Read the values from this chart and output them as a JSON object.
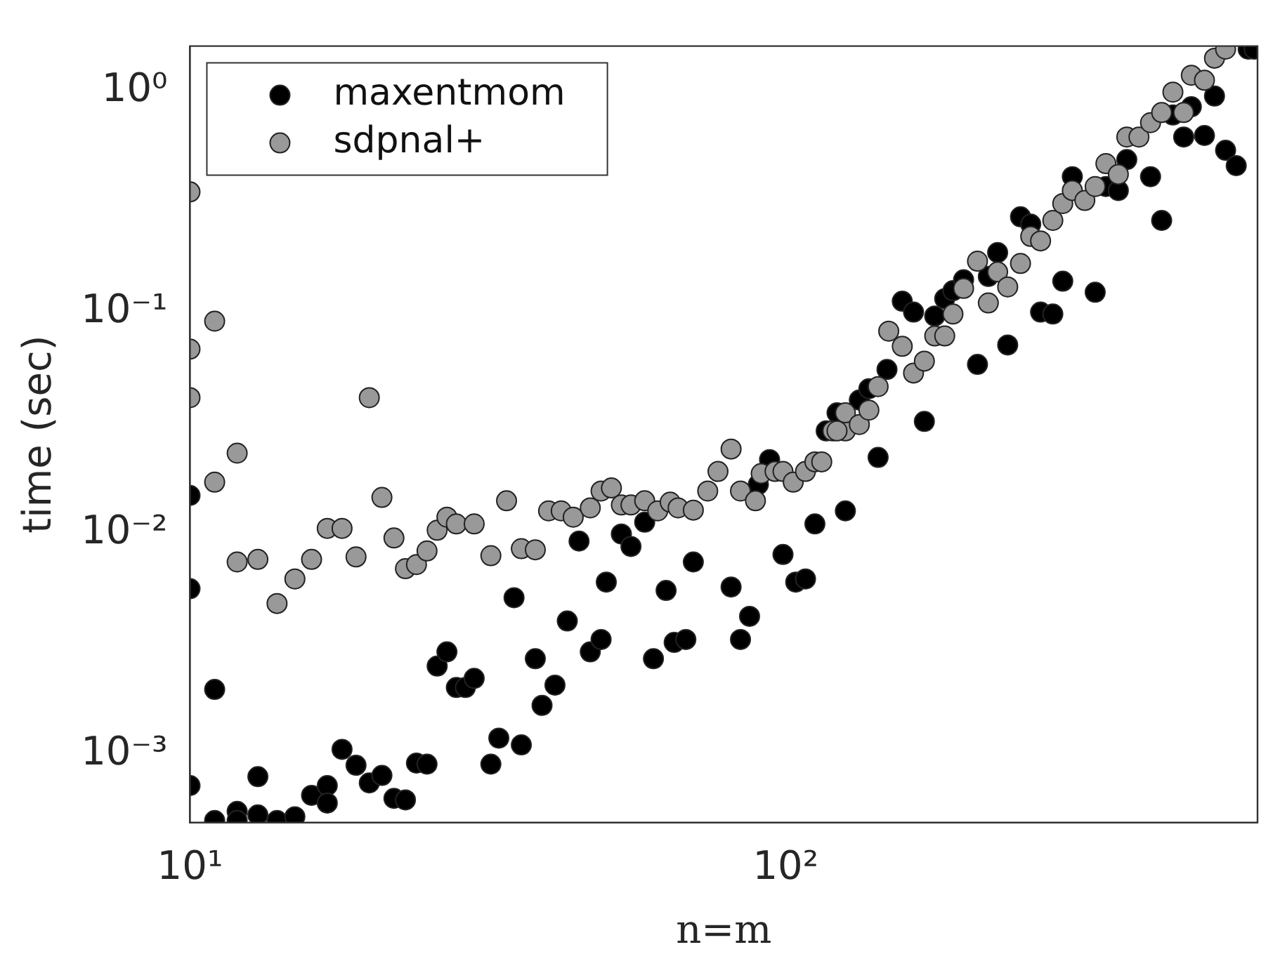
{
  "chart_data": {
    "type": "scatter",
    "xlabel": "n=m",
    "ylabel": "time (sec)",
    "log": "xy",
    "grid": false,
    "legend": "top left",
    "marker": "circle",
    "xlim": [
      10,
      620
    ],
    "ylim": [
      0.00049,
      1.6
    ],
    "xticks": [
      {
        "value": 10,
        "label": "10¹"
      },
      {
        "value": 100,
        "label": "10²"
      }
    ],
    "yticks": [
      {
        "value": 0.001,
        "label": "10⁻³"
      },
      {
        "value": 0.01,
        "label": "10⁻²"
      },
      {
        "value": 0.1,
        "label": "10⁻¹"
      },
      {
        "value": 1,
        "label": "10⁰"
      }
    ],
    "series": [
      {
        "name": "maxentmom",
        "color": "#000000",
        "x": [
          10,
          10,
          10,
          11,
          11,
          12,
          12,
          13,
          13,
          14,
          15,
          16,
          17,
          17,
          18,
          19,
          20,
          21,
          22,
          23,
          24,
          25,
          26,
          27,
          28,
          29,
          30,
          32,
          33,
          35,
          36,
          38,
          39,
          41,
          43,
          45,
          47,
          49,
          50,
          53,
          55,
          58,
          60,
          63,
          65,
          68,
          70,
          81,
          84,
          87,
          90,
          94,
          99,
          104,
          108,
          112,
          117,
          122,
          126,
          133,
          138,
          143,
          148,
          157,
          164,
          171,
          178,
          185,
          191,
          199,
          210,
          219,
          227,
          236,
          248,
          258,
          268,
          281,
          292,
          303,
          331,
          345,
          362,
          374,
          410,
          428,
          447,
          466,
          480,
          505,
          525,
          548,
          571,
          598,
          612
        ],
        "values": [
          0.0148,
          0.0056,
          0.00072,
          0.00196,
          0.0005,
          0.00055,
          0.0005,
          0.00079,
          0.00053,
          0.0005,
          0.00052,
          0.00065,
          0.00072,
          0.0006,
          0.00105,
          0.00089,
          0.00074,
          0.0008,
          0.00063,
          0.00062,
          0.00091,
          0.0009,
          0.0025,
          0.0029,
          0.002,
          0.002,
          0.0022,
          0.0009,
          0.00118,
          0.0051,
          0.0011,
          0.0027,
          0.00166,
          0.00205,
          0.004,
          0.0092,
          0.0029,
          0.0033,
          0.006,
          0.0099,
          0.0087,
          0.0112,
          0.0027,
          0.0055,
          0.0032,
          0.0033,
          0.0074,
          0.0057,
          0.0033,
          0.0042,
          0.0166,
          0.0215,
          0.008,
          0.006,
          0.0062,
          0.011,
          0.029,
          0.035,
          0.0126,
          0.04,
          0.045,
          0.022,
          0.055,
          0.112,
          0.1,
          0.032,
          0.096,
          0.115,
          0.125,
          0.14,
          0.058,
          0.145,
          0.186,
          0.071,
          0.27,
          0.25,
          0.1,
          0.098,
          0.138,
          0.41,
          0.123,
          0.37,
          0.355,
          0.49,
          0.41,
          0.26,
          0.78,
          0.62,
          0.85,
          0.63,
          0.95,
          0.54,
          0.46,
          1.55,
          1.55
        ]
      },
      {
        "name": "sdpnal+",
        "color": "#999999",
        "x": [
          10,
          10,
          10,
          11,
          11,
          12,
          12,
          13,
          14,
          15,
          16,
          17,
          18,
          19,
          20,
          21,
          22,
          23,
          24,
          25,
          26,
          27,
          28,
          30,
          32,
          34,
          36,
          38,
          40,
          42,
          44,
          47,
          49,
          51,
          53,
          55,
          58,
          61,
          64,
          66,
          70,
          74,
          77,
          81,
          84,
          89,
          91,
          96,
          99,
          103,
          108,
          112,
          115,
          120,
          126,
          122,
          126,
          133,
          138,
          143,
          149,
          157,
          164,
          171,
          178,
          185,
          191,
          199,
          210,
          219,
          227,
          236,
          248,
          258,
          268,
          281,
          292,
          303,
          318,
          331,
          345,
          362,
          374,
          392,
          410,
          428,
          447,
          466,
          480,
          505,
          525,
          548
        ],
        "values": [
          0.35,
          0.068,
          0.041,
          0.091,
          0.017,
          0.023,
          0.0074,
          0.0076,
          0.0048,
          0.0062,
          0.0076,
          0.0105,
          0.0105,
          0.0078,
          0.041,
          0.0145,
          0.0095,
          0.0069,
          0.0072,
          0.0083,
          0.0103,
          0.0118,
          0.011,
          0.011,
          0.0079,
          0.014,
          0.0085,
          0.0084,
          0.0126,
          0.0126,
          0.0118,
          0.013,
          0.0155,
          0.016,
          0.0134,
          0.0134,
          0.014,
          0.0126,
          0.0138,
          0.013,
          0.0127,
          0.0155,
          0.019,
          0.024,
          0.0155,
          0.014,
          0.0186,
          0.019,
          0.019,
          0.017,
          0.019,
          0.021,
          0.021,
          0.029,
          0.029,
          0.029,
          0.035,
          0.031,
          0.036,
          0.046,
          0.082,
          0.07,
          0.053,
          0.06,
          0.078,
          0.078,
          0.098,
          0.128,
          0.17,
          0.11,
          0.152,
          0.13,
          0.166,
          0.22,
          0.21,
          0.26,
          0.31,
          0.355,
          0.32,
          0.37,
          0.47,
          0.42,
          0.62,
          0.62,
          0.72,
          0.8,
          0.99,
          0.8,
          1.18,
          1.12,
          1.41,
          1.55
        ]
      }
    ]
  }
}
